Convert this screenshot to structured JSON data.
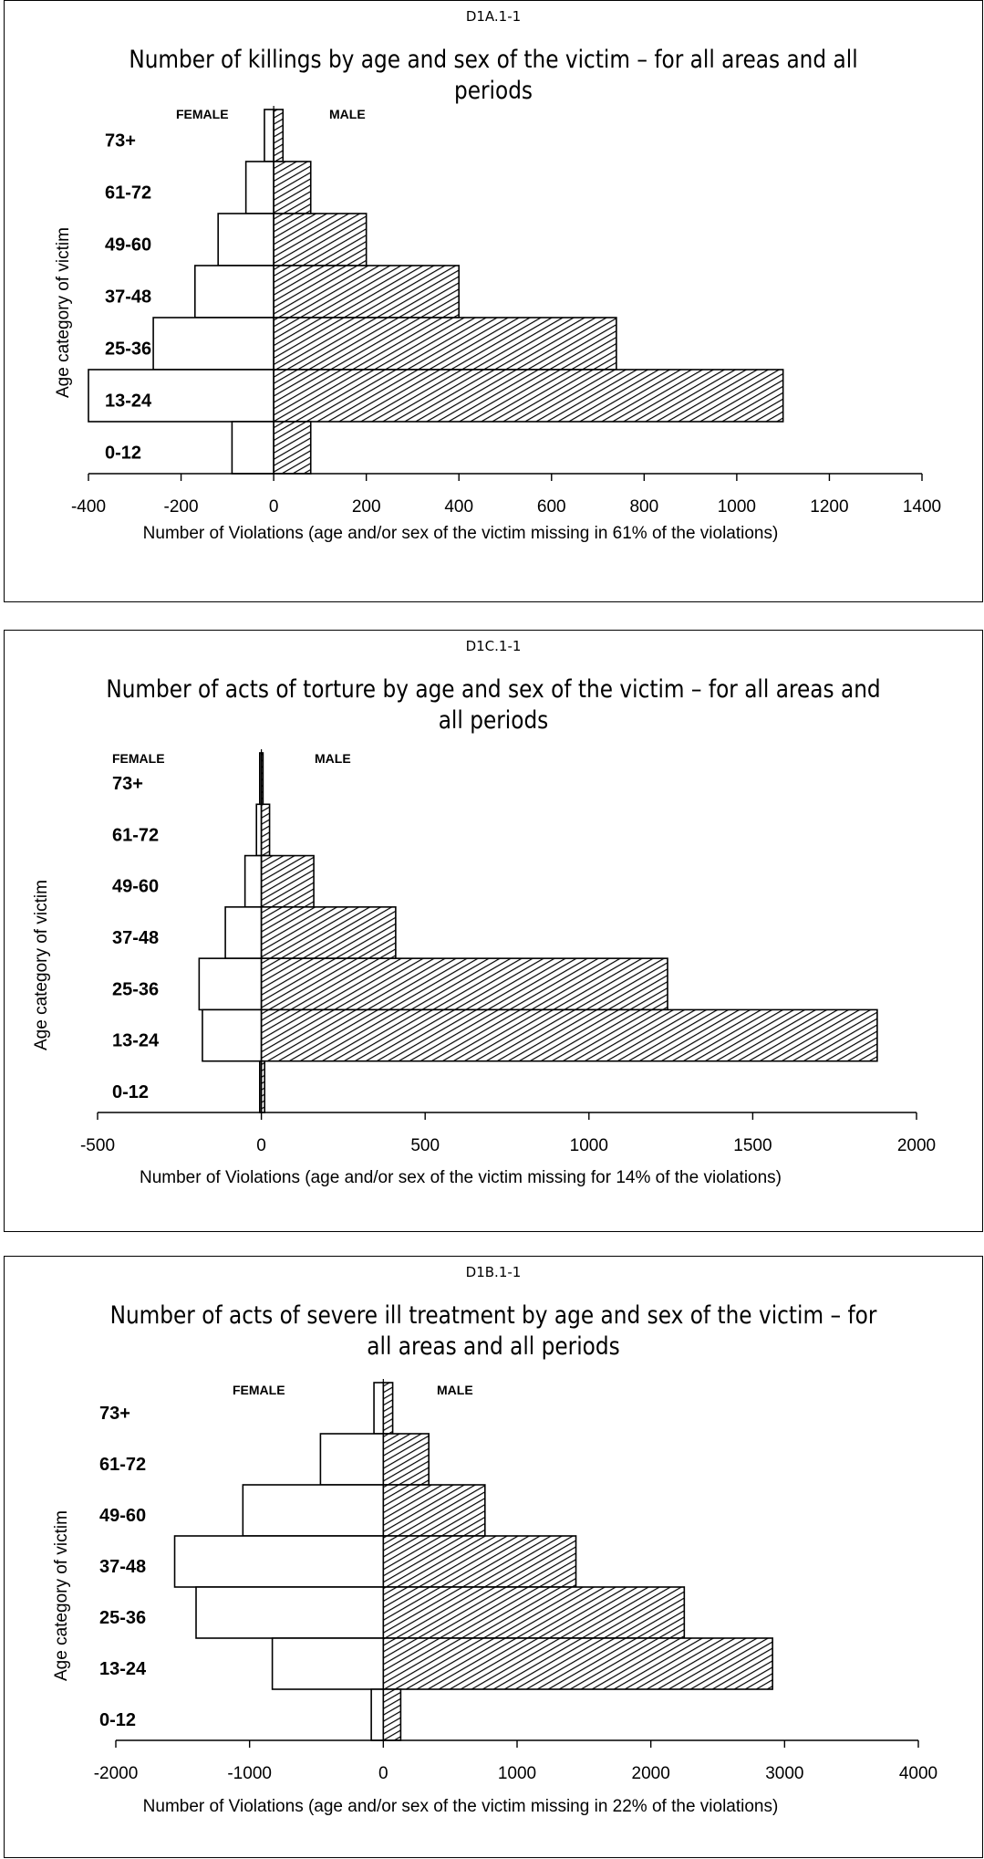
{
  "chart_data": [
    {
      "type": "bar",
      "orientation": "horizontal",
      "code": "D1A.1-1",
      "title": "Number of killings by age and sex of the victim – for all areas and all periods",
      "xlabel": "Number of Violations (age and/or sex of the victim missing in 61% of the violations)",
      "ylabel": "Age category of victim",
      "categories": [
        "73+",
        "61-72",
        "49-60",
        "37-48",
        "25-36",
        "13-24",
        "0-12"
      ],
      "xlim": [
        -400,
        1400
      ],
      "xticks": [
        -400,
        -200,
        0,
        200,
        400,
        600,
        800,
        1000,
        1200,
        1400
      ],
      "legend": [
        "FEMALE",
        "MALE"
      ],
      "series": [
        {
          "name": "FEMALE",
          "values": [
            -20,
            -60,
            -120,
            -170,
            -260,
            -400,
            -90
          ]
        },
        {
          "name": "MALE",
          "values": [
            20,
            80,
            200,
            400,
            740,
            1100,
            80
          ]
        }
      ]
    },
    {
      "type": "bar",
      "orientation": "horizontal",
      "code": "D1C.1-1",
      "title": "Number of acts of torture by age and sex of the victim – for all areas and all periods",
      "xlabel": "Number of Violations (age and/or sex of the victim missing for 14% of the violations)",
      "ylabel": "Age category of victim",
      "categories": [
        "73+",
        "61-72",
        "49-60",
        "37-48",
        "25-36",
        "13-24",
        "0-12"
      ],
      "xlim": [
        -500,
        2000
      ],
      "xticks": [
        -500,
        0,
        500,
        1000,
        1500,
        2000
      ],
      "legend": [
        "FEMALE",
        "MALE"
      ],
      "series": [
        {
          "name": "FEMALE",
          "values": [
            -5,
            -15,
            -50,
            -110,
            -190,
            -180,
            -5
          ]
        },
        {
          "name": "MALE",
          "values": [
            5,
            25,
            160,
            410,
            1240,
            1880,
            10
          ]
        }
      ]
    },
    {
      "type": "bar",
      "orientation": "horizontal",
      "code": "D1B.1-1",
      "title": "Number of acts of severe ill treatment by age and sex of the victim – for all areas and all periods",
      "xlabel": "Number of Violations (age and/or sex of the victim missing in 22% of the violations)",
      "ylabel": "Age category of victim",
      "categories": [
        "73+",
        "61-72",
        "49-60",
        "37-48",
        "25-36",
        "13-24",
        "0-12"
      ],
      "xlim": [
        -2000,
        4000
      ],
      "xticks": [
        -2000,
        -1000,
        0,
        1000,
        2000,
        3000,
        4000
      ],
      "legend": [
        "FEMALE",
        "MALE"
      ],
      "series": [
        {
          "name": "FEMALE",
          "values": [
            -70,
            -470,
            -1050,
            -1560,
            -1400,
            -830,
            -90
          ]
        },
        {
          "name": "MALE",
          "values": [
            70,
            340,
            760,
            1440,
            2250,
            2910,
            130
          ]
        }
      ]
    }
  ]
}
